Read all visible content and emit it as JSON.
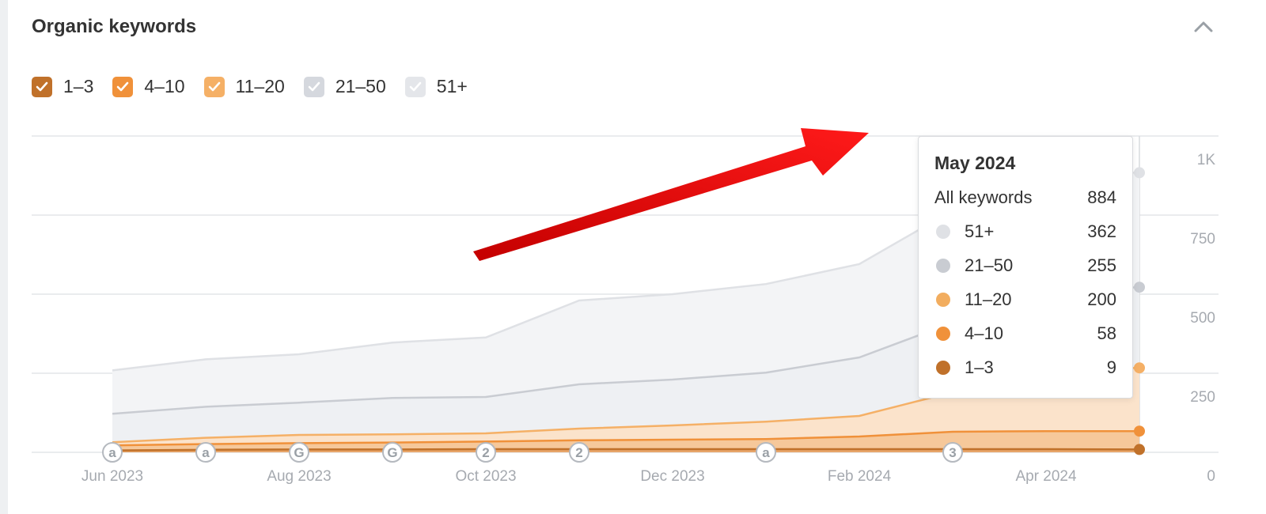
{
  "header": {
    "title": "Organic keywords"
  },
  "legend": [
    {
      "label": "1–3",
      "color": "#c0712a",
      "checked": true
    },
    {
      "label": "4–10",
      "color": "#f0913a",
      "checked": true
    },
    {
      "label": "11–20",
      "color": "#f5b066",
      "checked": true
    },
    {
      "label": "21–50",
      "color": "#d5d8de",
      "checked": true
    },
    {
      "label": "51+",
      "color": "#e4e6ea",
      "checked": true
    }
  ],
  "tooltip": {
    "title": "May 2024",
    "total_label": "All keywords",
    "total_value": "884",
    "rows": [
      {
        "label": "51+",
        "value": "362",
        "color": "#dfe1e5"
      },
      {
        "label": "21–50",
        "value": "255",
        "color": "#c9ccd2"
      },
      {
        "label": "11–20",
        "value": "200",
        "color": "#f2ad5f"
      },
      {
        "label": "4–10",
        "value": "58",
        "color": "#f0913a"
      },
      {
        "label": "1–3",
        "value": "9",
        "color": "#c0712a"
      }
    ]
  },
  "chart_data": {
    "type": "area",
    "stacked": true,
    "x": [
      "2023-06",
      "2023-07",
      "2023-08",
      "2023-09",
      "2023-10",
      "2023-11",
      "2023-12",
      "2024-01",
      "2024-02",
      "2024-03",
      "2024-04",
      "2024-05"
    ],
    "x_tick_labels": [
      "Jun 2023",
      "Aug 2023",
      "Oct 2023",
      "Dec 2023",
      "Feb 2024",
      "Apr 2024"
    ],
    "y_tick_labels": [
      "0",
      "250",
      "500",
      "750",
      "1K"
    ],
    "ylim": [
      0,
      1000
    ],
    "grid": true,
    "y_axis_side": "right",
    "series": [
      {
        "name": "1–3",
        "color": "#c0712a",
        "values": [
          6,
          8,
          9,
          9,
          10,
          10,
          10,
          10,
          10,
          10,
          10,
          9
        ]
      },
      {
        "name": "4–10",
        "color": "#f0913a",
        "values": [
          16,
          18,
          20,
          22,
          24,
          28,
          30,
          32,
          40,
          55,
          57,
          58
        ]
      },
      {
        "name": "11–20",
        "color": "#f5b066",
        "values": [
          10,
          20,
          26,
          26,
          26,
          37,
          45,
          55,
          65,
          125,
          195,
          200
        ]
      },
      {
        "name": "21–50",
        "color": "#c9ccd2",
        "values": [
          90,
          98,
          102,
          115,
          115,
          140,
          145,
          155,
          185,
          220,
          250,
          255
        ]
      },
      {
        "name": "51+",
        "color": "#dfe1e5",
        "values": [
          137,
          150,
          153,
          175,
          188,
          265,
          270,
          280,
          295,
          355,
          372,
          362
        ]
      }
    ],
    "markers": [
      {
        "x": "2023-06",
        "label": "a"
      },
      {
        "x": "2023-07",
        "label": "a"
      },
      {
        "x": "2023-08",
        "label": "G"
      },
      {
        "x": "2023-09",
        "label": "G"
      },
      {
        "x": "2023-10",
        "label": "2"
      },
      {
        "x": "2023-11",
        "label": "2"
      },
      {
        "x": "2024-01",
        "label": "a"
      },
      {
        "x": "2024-03",
        "label": "3"
      }
    ]
  }
}
